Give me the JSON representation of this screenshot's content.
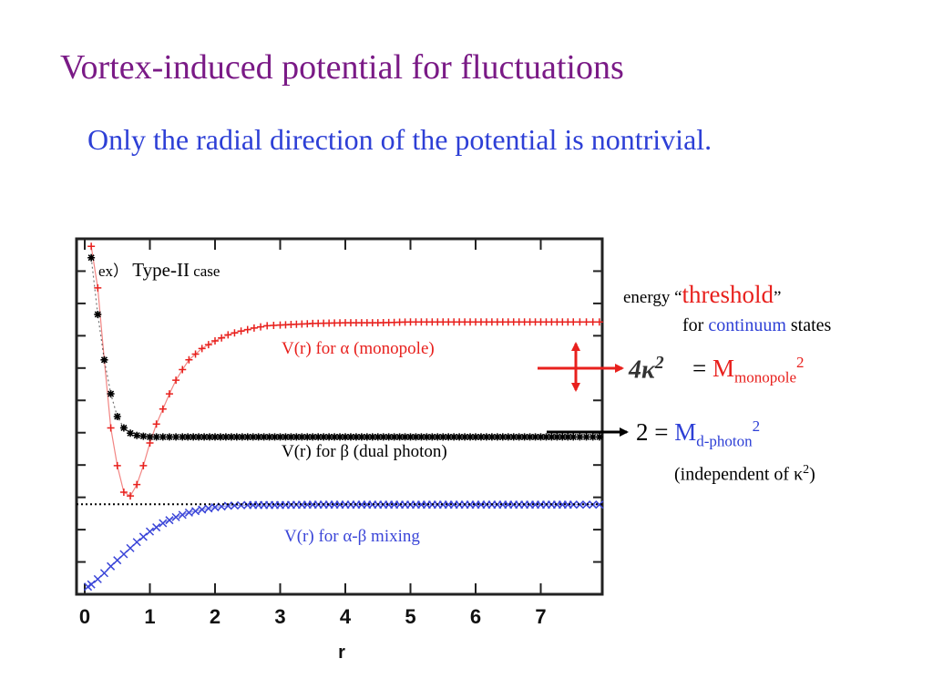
{
  "title": "Vortex-induced potential for fluctuations",
  "subtitle": "Only the radial direction of the potential is nontrivial.",
  "plot_note": {
    "prefix": "ex）",
    "main": "Type-II",
    "suffix": "case"
  },
  "series_labels": {
    "alpha": "V(r) for α   (monopole)",
    "beta": "V(r) for β (dual photon)",
    "mixing": "V(r) for α-β mixing"
  },
  "annotations": {
    "energy_prefix": "energy “",
    "threshold_word": "threshold",
    "energy_suffix": "”",
    "for_word": "for",
    "continuum_word": "continuum",
    "states_word": "states",
    "kappa_formula": "4κ",
    "kappa_exp": "2",
    "equals": "=",
    "m_letter": "M",
    "monopole_sub": "monopole",
    "monopole_sup": "2",
    "two_equals": "2 =",
    "dphoton_sub": "d-photon",
    "dphoton_sup": "2",
    "independent": "(independent of κ",
    "independent_sup": "2",
    "independent_close": ")"
  },
  "colors": {
    "title": "#7a1a86",
    "subtitle": "#2d3fd6",
    "alpha": "#e8201d",
    "beta": "#000000",
    "mixing": "#3a45d8"
  },
  "chart_data": {
    "type": "scatter",
    "xlabel": "r",
    "ylabel": "",
    "xlim": [
      0,
      8
    ],
    "ylim": [
      -1.15,
      3.55
    ],
    "x_ticks": [
      0,
      1,
      2,
      3,
      4,
      5,
      6,
      7
    ],
    "grid": false,
    "series": [
      {
        "name": "V(r) for α (monopole)",
        "color": "#e8201d",
        "marker": "+",
        "x": [
          0.1,
          0.2,
          0.3,
          0.4,
          0.5,
          0.6,
          0.7,
          0.8,
          0.9,
          1.0,
          1.1,
          1.2,
          1.3,
          1.4,
          1.5,
          1.6,
          1.8,
          2.0,
          2.2,
          2.4,
          2.6,
          2.8,
          3.0,
          3.5,
          4.0,
          4.5,
          5.0,
          5.5,
          6.0,
          6.5,
          7.0,
          7.5,
          7.9
        ],
        "y": [
          3.45,
          2.9,
          1.95,
          1.05,
          0.55,
          0.2,
          0.15,
          0.3,
          0.55,
          0.85,
          1.1,
          1.3,
          1.5,
          1.68,
          1.82,
          1.95,
          2.1,
          2.2,
          2.28,
          2.33,
          2.37,
          2.4,
          2.41,
          2.43,
          2.44,
          2.44,
          2.45,
          2.45,
          2.45,
          2.45,
          2.45,
          2.45,
          2.45
        ]
      },
      {
        "name": "V(r) for β (dual photon)",
        "color": "#000000",
        "marker": "*",
        "x": [
          0.1,
          0.2,
          0.3,
          0.4,
          0.5,
          0.6,
          0.7,
          0.8,
          0.9,
          1.0,
          1.2,
          1.5,
          2.0,
          2.5,
          3.0,
          3.5,
          4.0,
          4.5,
          5.0,
          5.5,
          6.0,
          6.5,
          7.0,
          7.5,
          7.9
        ],
        "y": [
          3.3,
          2.55,
          1.95,
          1.5,
          1.2,
          1.05,
          0.98,
          0.95,
          0.94,
          0.93,
          0.93,
          0.93,
          0.93,
          0.93,
          0.93,
          0.93,
          0.93,
          0.93,
          0.93,
          0.93,
          0.93,
          0.93,
          0.93,
          0.93,
          0.93
        ]
      },
      {
        "name": "V(r) for α-β mixing",
        "color": "#3a45d8",
        "marker": "x",
        "x": [
          0.05,
          0.1,
          0.2,
          0.3,
          0.4,
          0.5,
          0.6,
          0.7,
          0.8,
          0.9,
          1.0,
          1.2,
          1.4,
          1.6,
          1.8,
          2.0,
          2.2,
          2.5,
          3.0,
          3.5,
          4.0,
          4.5,
          5.0,
          5.5,
          6.0,
          6.5,
          7.0,
          7.5,
          7.9
        ],
        "y": [
          -1.05,
          -1.02,
          -0.95,
          -0.87,
          -0.78,
          -0.7,
          -0.62,
          -0.54,
          -0.46,
          -0.39,
          -0.32,
          -0.21,
          -0.13,
          -0.07,
          -0.03,
          0.0,
          0.02,
          0.03,
          0.03,
          0.035,
          0.035,
          0.035,
          0.035,
          0.035,
          0.035,
          0.035,
          0.035,
          0.035,
          0.035
        ]
      },
      {
        "name": "",
        "color": "#000000",
        "marker": "line-dotted",
        "x": [
          0,
          8
        ],
        "y": [
          0.04,
          0.04
        ]
      }
    ]
  }
}
